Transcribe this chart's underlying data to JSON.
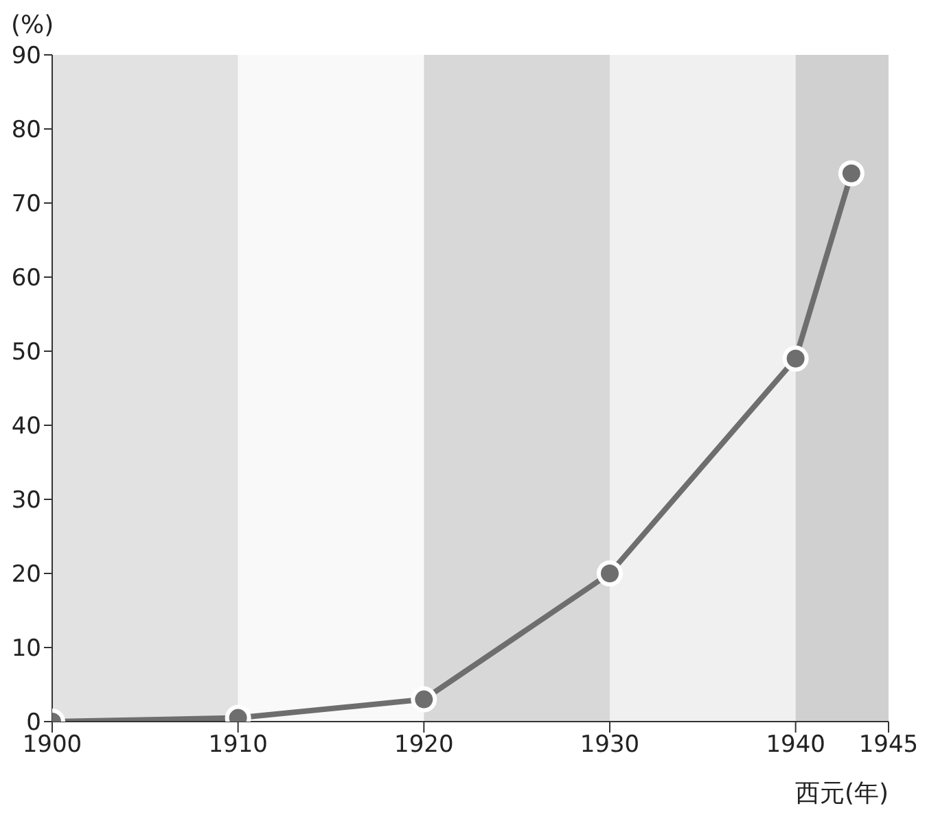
{
  "chart_data": {
    "type": "line",
    "ylabel": "(%)",
    "xlabel": "西元(年)",
    "x": [
      1900,
      1910,
      1920,
      1930,
      1940,
      1943
    ],
    "series": [
      {
        "color": "#6e6e6e",
        "values": [
          0,
          0.5,
          3,
          20,
          49,
          74
        ]
      }
    ],
    "xlim": [
      1900,
      1945
    ],
    "xticks": [
      1900,
      1910,
      1920,
      1930,
      1940,
      1945
    ],
    "ylim": [
      0,
      90
    ],
    "yticks": [
      0,
      10,
      20,
      30,
      40,
      50,
      60,
      70,
      80,
      90
    ],
    "bands": [
      {
        "axis": "x",
        "from": 1900,
        "to": 1910,
        "color": "#e2e2e2"
      },
      {
        "axis": "x",
        "from": 1910,
        "to": 1920,
        "color": "#f9f9f9"
      },
      {
        "axis": "x",
        "from": 1920,
        "to": 1930,
        "color": "#d8d8d8"
      },
      {
        "axis": "x",
        "from": 1930,
        "to": 1940,
        "color": "#f0f0f0"
      },
      {
        "axis": "x",
        "from": 1940,
        "to": 1945,
        "color": "#d0d0d0"
      }
    ],
    "grid": false,
    "legend": false,
    "marker": "circle",
    "line_style": "solid"
  }
}
